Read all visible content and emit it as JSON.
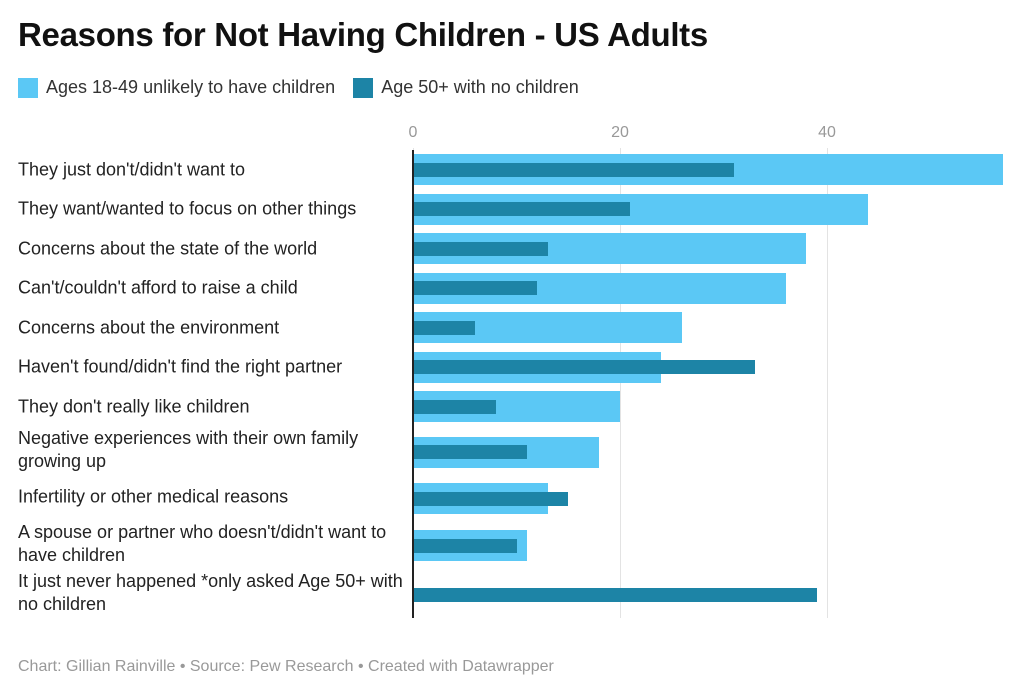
{
  "chart_data": {
    "type": "bar",
    "orientation": "horizontal",
    "title": "Reasons for Not Having Children - US Adults",
    "categories": [
      "They just don't/didn't want to",
      "They want/wanted to focus on other things",
      "Concerns about the state of the world",
      "Can't/couldn't afford to raise a child",
      "Concerns about the environment",
      "Haven't found/didn't find the right partner",
      "They don't really like children",
      "Negative experiences with their own family growing up",
      "Infertility or other medical reasons",
      "A spouse or partner who doesn't/didn't want to have children",
      "It just never happened *only asked Age 50+ with no children"
    ],
    "series": [
      {
        "name": "Ages 18-49 unlikely to have children",
        "color": "#5bc8f5",
        "values": [
          57,
          44,
          38,
          36,
          26,
          24,
          20,
          18,
          13,
          11,
          null
        ]
      },
      {
        "name": "Age 50+ with no children",
        "color": "#1d84a6",
        "values": [
          31,
          21,
          13,
          12,
          6,
          33,
          8,
          11,
          15,
          10,
          39
        ]
      }
    ],
    "xlim": [
      0,
      57
    ],
    "xticks": [
      "0",
      "20",
      "40"
    ],
    "grid": true,
    "legend": "top-left"
  },
  "footer": "Chart: Gillian Rainville • Source: Pew Research • Created with Datawrapper"
}
